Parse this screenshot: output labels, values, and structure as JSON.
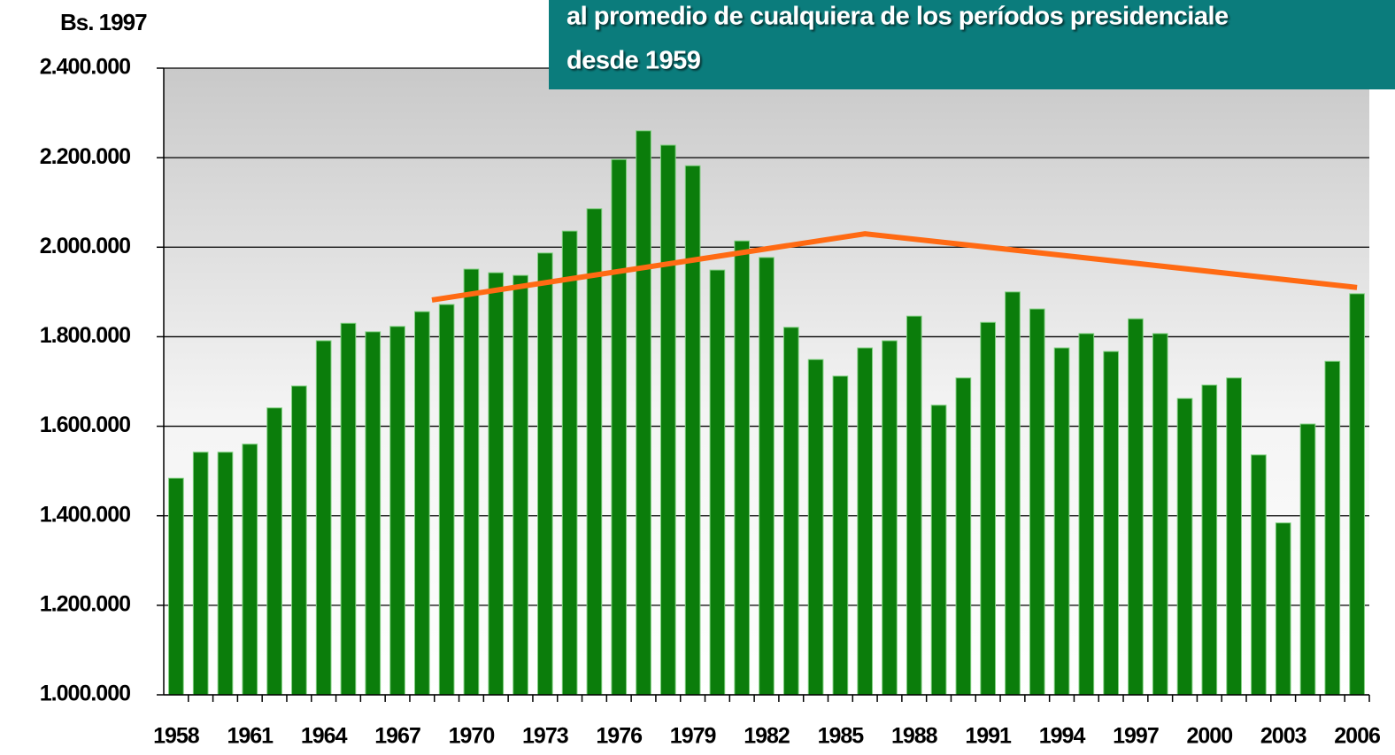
{
  "chart_data": {
    "type": "bar",
    "y_axis_label": "Bs. 1997",
    "annotation": [
      "al promedio de cualquiera de los períodos presidenciale",
      "desde 1959"
    ],
    "categories": [
      "1958",
      null,
      null,
      "1961",
      null,
      null,
      "1964",
      null,
      null,
      "1967",
      null,
      null,
      "1970",
      null,
      null,
      "1973",
      null,
      null,
      "1976",
      null,
      null,
      "1979",
      null,
      null,
      "1982",
      null,
      null,
      "1985",
      null,
      null,
      "1988",
      null,
      null,
      "1991",
      null,
      null,
      "1994",
      null,
      null,
      "1997",
      null,
      null,
      "2000",
      null,
      null,
      "2003",
      null,
      null,
      "2006"
    ],
    "values": [
      1484000,
      1542000,
      1542000,
      1560000,
      1641000,
      1690000,
      1791000,
      1830000,
      1811000,
      1823000,
      1856000,
      1872000,
      1951000,
      1943000,
      1937000,
      1987000,
      2036000,
      2086000,
      2196000,
      2260000,
      2228000,
      2182000,
      1949000,
      2014000,
      1977000,
      1821000,
      1749000,
      1712000,
      1775000,
      1791000,
      1846000,
      1647000,
      1708000,
      1832000,
      1900000,
      1862000,
      1775000,
      1807000,
      1767000,
      1840000,
      1807000,
      1662000,
      1692000,
      1708000,
      1536000,
      1384000,
      1605000,
      1745000,
      1896000
    ],
    "color": "#0b7d0b",
    "trend": {
      "color": "#ff6a13",
      "x": [
        1968.4,
        1986,
        2006
      ],
      "values": [
        1882000,
        2030000,
        1910000
      ]
    },
    "ylim": [
      1000000,
      2400000
    ],
    "yticks": [
      {
        "value": 1000000,
        "label": "1.000.000"
      },
      {
        "value": 1200000,
        "label": "1.200.000"
      },
      {
        "value": 1400000,
        "label": "1.400.000"
      },
      {
        "value": 1600000,
        "label": "1.600.000"
      },
      {
        "value": 1800000,
        "label": "1.800.000"
      },
      {
        "value": 2000000,
        "label": "2.000.000"
      },
      {
        "value": 2200000,
        "label": "2.200.000"
      },
      {
        "value": 2400000,
        "label": "2.400.000"
      }
    ],
    "grid": true
  }
}
